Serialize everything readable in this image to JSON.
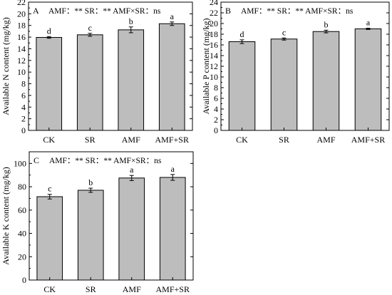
{
  "chart_data": [
    {
      "type": "bar",
      "panel_label": "A",
      "stats_text": "AMF：**   SR：**   AMF×SR：ns",
      "categories": [
        "CK",
        "SR",
        "AMF",
        "AMF+SR"
      ],
      "values": [
        15.95,
        16.4,
        17.25,
        18.3
      ],
      "errors": [
        0.15,
        0.25,
        0.5,
        0.3
      ],
      "letters": [
        "d",
        "c",
        "b",
        "a"
      ],
      "ylabel": "Available N content (mg/kg)",
      "xlabel": "",
      "ylim": [
        0,
        22
      ],
      "yticks": [
        0,
        2,
        4,
        6,
        8,
        10,
        12,
        14,
        16,
        18,
        20,
        22
      ],
      "bar_color": "#bdbdbd",
      "grid": false
    },
    {
      "type": "bar",
      "panel_label": "B",
      "stats_text": "AMF：**   SR：**   AMF×SR：ns",
      "categories": [
        "CK",
        "SR",
        "AMF",
        "AMF+SR"
      ],
      "values": [
        16.6,
        17.1,
        18.5,
        19.0
      ],
      "errors": [
        0.35,
        0.2,
        0.25,
        0.12
      ],
      "letters": [
        "d",
        "c",
        "b",
        "a"
      ],
      "ylabel": "Available P content (mg/kg)",
      "xlabel": "",
      "ylim": [
        0,
        24
      ],
      "yticks": [
        0,
        2,
        4,
        6,
        8,
        10,
        12,
        14,
        16,
        18,
        20,
        22,
        24
      ],
      "bar_color": "#bdbdbd",
      "grid": false
    },
    {
      "type": "bar",
      "panel_label": "C",
      "stats_text": "AMF：**   SR：**   AMF×SR：ns",
      "categories": [
        "CK",
        "SR",
        "AMF",
        "AMF+SR"
      ],
      "values": [
        71.5,
        77.0,
        87.5,
        88.0
      ],
      "errors": [
        2.0,
        1.8,
        2.2,
        2.5
      ],
      "letters": [
        "c",
        "b",
        "a",
        "a"
      ],
      "ylabel": "Available K content (mg/kg)",
      "xlabel": "",
      "ylim": [
        0,
        110
      ],
      "yticks": [
        0,
        20,
        40,
        60,
        80,
        100
      ],
      "bar_color": "#bdbdbd",
      "grid": false
    }
  ]
}
